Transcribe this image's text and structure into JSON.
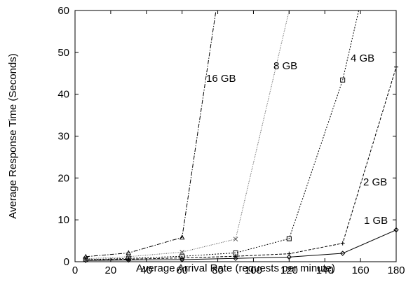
{
  "chart_data": {
    "type": "line",
    "xlabel": "Average Arrival Rate (requests per minute)",
    "ylabel": "Average Response Time (Seconds)",
    "xlim": [
      0,
      180
    ],
    "ylim": [
      0,
      60
    ],
    "xticks": [
      0,
      20,
      40,
      60,
      80,
      100,
      120,
      140,
      160,
      180
    ],
    "yticks": [
      0,
      10,
      20,
      30,
      40,
      50,
      60
    ],
    "grid": false,
    "legend": "inline labels",
    "series": [
      {
        "name": "1 GB",
        "marker": "diamond",
        "dash": "solid",
        "x": [
          6,
          30,
          60,
          90,
          120,
          150,
          180
        ],
        "y": [
          0.3,
          0.4,
          0.5,
          0.8,
          1.1,
          2.0,
          7.6
        ]
      },
      {
        "name": "2 GB",
        "marker": "plus",
        "dash": "dashed",
        "x": [
          6,
          30,
          60,
          90,
          120,
          150,
          180
        ],
        "y": [
          0.4,
          0.6,
          0.9,
          1.3,
          1.9,
          4.4,
          46.5
        ]
      },
      {
        "name": "4 GB",
        "marker": "square",
        "dash": "dotted",
        "x": [
          6,
          30,
          60,
          90,
          120,
          150,
          159
        ],
        "y": [
          0.5,
          0.8,
          1.3,
          2.1,
          5.5,
          43.4,
          60
        ]
      },
      {
        "name": "8 GB",
        "marker": "cross",
        "dash": "finedotted",
        "x": [
          6,
          30,
          60,
          90,
          120
        ],
        "y": [
          0.7,
          1.2,
          2.3,
          5.4,
          60
        ]
      },
      {
        "name": "16 GB",
        "marker": "triangle",
        "dash": "dashdot",
        "x": [
          6,
          30,
          60,
          79
        ],
        "y": [
          1.2,
          2.1,
          5.8,
          60
        ]
      }
    ],
    "annotations": [
      "16 GB",
      "8 GB",
      "4 GB",
      "2 GB",
      "1 GB"
    ]
  }
}
